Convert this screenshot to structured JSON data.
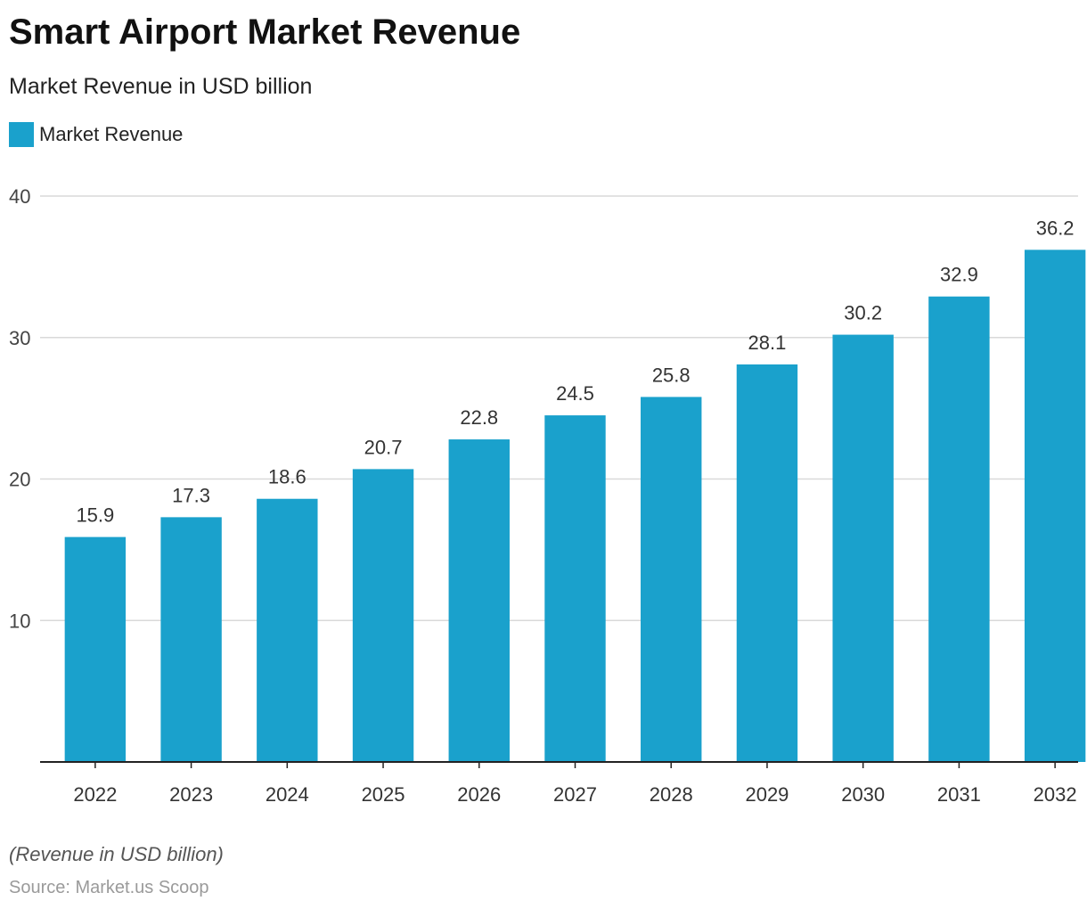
{
  "header": {
    "title": "Smart Airport Market Revenue",
    "subtitle": "Market Revenue in USD billion"
  },
  "legend": {
    "label": "Market Revenue"
  },
  "footer": {
    "note": "(Revenue in USD billion)",
    "source": "Source: Market.us Scoop"
  },
  "colors": {
    "bar": "#1aa1cc",
    "grid": "#d9d9d9",
    "axis": "#222222"
  },
  "chart_data": {
    "type": "bar",
    "title": "Smart Airport Market Revenue",
    "subtitle": "Market Revenue in USD billion",
    "xlabel": "",
    "ylabel": "",
    "categories": [
      "2022",
      "2023",
      "2024",
      "2025",
      "2026",
      "2027",
      "2028",
      "2029",
      "2030",
      "2031",
      "2032"
    ],
    "series": [
      {
        "name": "Market Revenue",
        "values": [
          15.9,
          17.3,
          18.6,
          20.7,
          22.8,
          24.5,
          25.8,
          28.1,
          30.2,
          32.9,
          36.2
        ],
        "labels": [
          "15.9",
          "17.3",
          "18.6",
          "20.7",
          "22.8",
          "24.5",
          "25.8",
          "28.1",
          "30.2",
          "32.9",
          "36.2"
        ]
      }
    ],
    "ylim": [
      0,
      40
    ],
    "yticks": [
      10,
      20,
      30,
      40
    ],
    "ytick_labels": [
      "10",
      "20",
      "30",
      "40"
    ],
    "grid": true,
    "legend_position": "top-left"
  }
}
